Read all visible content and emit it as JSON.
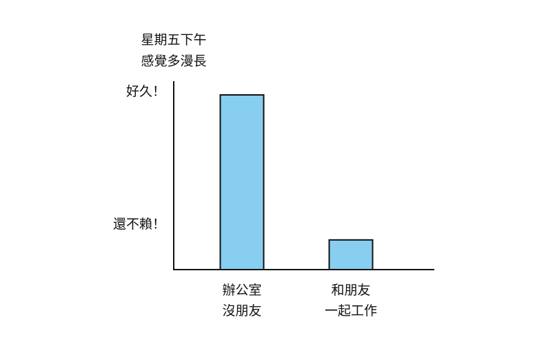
{
  "chart_data": {
    "type": "bar",
    "title": [
      "星期五下午",
      "感覺多漫長"
    ],
    "categories": [
      [
        "辦公室",
        "沒朋友"
      ],
      [
        "和朋友",
        "一起工作"
      ]
    ],
    "values": [
      1.0,
      0.17
    ],
    "ylim": [
      0,
      1.08
    ],
    "yticks": [
      {
        "label": "好久！",
        "value": 1.0
      },
      {
        "label": "還不賴！",
        "value": 0.24
      }
    ],
    "xlabel": "",
    "ylabel": "",
    "grid": false,
    "bar_color": "#87CEF0",
    "outline_color": "#111111"
  }
}
